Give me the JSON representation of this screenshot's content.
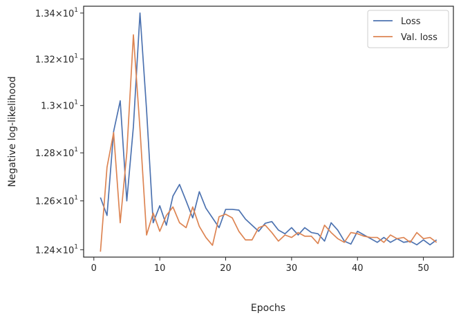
{
  "chart_data": {
    "type": "line",
    "xlabel": "Epochs",
    "ylabel": "Negative log-likelihood",
    "yscale": "log",
    "xlim": [
      -1.55,
      54.55
    ],
    "ylim": [
      12.37,
      13.43
    ],
    "grid": false,
    "legend_position": "top-right",
    "x_ticks": [
      {
        "value": 0,
        "label": "0"
      },
      {
        "value": 10,
        "label": "10"
      },
      {
        "value": 20,
        "label": "20"
      },
      {
        "value": 30,
        "label": "30"
      },
      {
        "value": 40,
        "label": "40"
      },
      {
        "value": 50,
        "label": "50"
      }
    ],
    "y_ticks": [
      {
        "value": 12.4,
        "mantissa": "1.24",
        "base": "10",
        "exp": "1"
      },
      {
        "value": 12.6,
        "mantissa": "1.26",
        "base": "10",
        "exp": "1"
      },
      {
        "value": 12.8,
        "mantissa": "1.28",
        "base": "10",
        "exp": "1"
      },
      {
        "value": 13.0,
        "mantissa": "1.3",
        "base": "10",
        "exp": "1"
      },
      {
        "value": 13.2,
        "mantissa": "1.32",
        "base": "10",
        "exp": "1"
      },
      {
        "value": 13.4,
        "mantissa": "1.34",
        "base": "10",
        "exp": "1"
      }
    ],
    "x": [
      1,
      2,
      3,
      4,
      5,
      6,
      7,
      8,
      9,
      10,
      11,
      12,
      13,
      14,
      15,
      16,
      17,
      18,
      19,
      20,
      21,
      22,
      23,
      24,
      25,
      26,
      27,
      28,
      29,
      30,
      31,
      32,
      33,
      34,
      35,
      36,
      37,
      38,
      39,
      40,
      41,
      42,
      43,
      44,
      45,
      46,
      47,
      48,
      49,
      50,
      51,
      52
    ],
    "series": [
      {
        "name": "Loss",
        "color": "#4c72b0",
        "values": [
          12.614,
          12.54,
          12.89,
          13.02,
          12.6,
          12.91,
          13.4,
          12.98,
          12.51,
          12.58,
          12.5,
          12.62,
          12.668,
          12.6,
          12.53,
          12.638,
          12.57,
          12.53,
          12.49,
          12.565,
          12.565,
          12.562,
          12.525,
          12.5,
          12.475,
          12.508,
          12.515,
          12.48,
          12.465,
          12.49,
          12.46,
          12.49,
          12.47,
          12.465,
          12.435,
          12.51,
          12.48,
          12.435,
          12.423,
          12.475,
          12.46,
          12.445,
          12.43,
          12.45,
          12.43,
          12.445,
          12.43,
          12.435,
          12.42,
          12.44,
          12.42,
          12.44
        ]
      },
      {
        "name": "Val. loss",
        "color": "#dd8452",
        "values": [
          12.392,
          12.74,
          12.885,
          12.51,
          12.8,
          13.305,
          12.9,
          12.46,
          12.55,
          12.475,
          12.54,
          12.575,
          12.51,
          12.49,
          12.575,
          12.495,
          12.45,
          12.418,
          12.535,
          12.545,
          12.53,
          12.475,
          12.44,
          12.44,
          12.49,
          12.5,
          12.47,
          12.435,
          12.46,
          12.45,
          12.47,
          12.455,
          12.455,
          12.425,
          12.5,
          12.47,
          12.445,
          12.43,
          12.47,
          12.465,
          12.455,
          12.45,
          12.45,
          12.43,
          12.46,
          12.445,
          12.45,
          12.43,
          12.47,
          12.445,
          12.45,
          12.43
        ]
      }
    ]
  }
}
